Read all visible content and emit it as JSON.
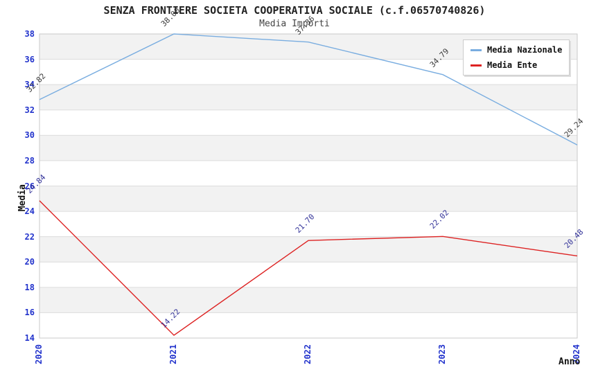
{
  "title": "SENZA FRONTIERE SOCIETA COOPERATIVA SOCIALE (c.f.06570740826)",
  "subtitle": "Media Importi",
  "chart_data": {
    "type": "line",
    "x": [
      "2020",
      "2021",
      "2022",
      "2023",
      "2024"
    ],
    "series": [
      {
        "name": "Media Nazionale",
        "values": [
          32.82,
          38.0,
          37.36,
          34.79,
          29.24
        ],
        "color": "#79ade0",
        "label_color": "#3c3c3c"
      },
      {
        "name": "Media Ente",
        "values": [
          24.84,
          14.22,
          21.7,
          22.02,
          20.48
        ],
        "color": "#dd2222",
        "label_color": "#333399"
      }
    ],
    "xlabel": "Anno",
    "ylabel": "Media",
    "ylim": [
      14,
      38
    ],
    "ytick_step": 2,
    "grid": "horizontal-bands",
    "legend_position": "top-right"
  },
  "colors": {
    "axis_tick_text": "#2233cc",
    "band_gray": "#f2f2f2",
    "gridline": "#dcdcdc",
    "plot_border": "#c9c9c9",
    "background": "#ffffff"
  }
}
